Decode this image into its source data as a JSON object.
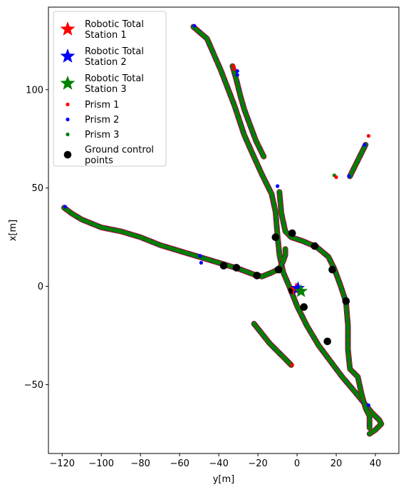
{
  "chart_data": {
    "type": "scatter",
    "title": "",
    "xlabel": "y[m]",
    "ylabel": "x[m]",
    "xlim": [
      -127,
      52
    ],
    "ylim": [
      -85,
      142
    ],
    "xticks": [
      -120,
      -100,
      -80,
      -60,
      -40,
      -20,
      0,
      20,
      40
    ],
    "yticks": [
      -50,
      0,
      50,
      100
    ],
    "xtick_labels": [
      "−120",
      "−100",
      "−80",
      "−60",
      "−40",
      "−20",
      "0",
      "20",
      "40"
    ],
    "ytick_labels": [
      "−50",
      "0",
      "50",
      "100"
    ],
    "grid": false,
    "legend_position": "top-left",
    "colors": {
      "station1": "#ff0000",
      "station2": "#0000ff",
      "station3": "#008000",
      "prism1": "#ff0000",
      "prism2": "#0000ff",
      "prism3": "#008000",
      "gcp": "#000000",
      "track_edge": "#b01030"
    },
    "stations": [
      {
        "name": "Robotic Total Station 1",
        "label_lines": [
          "Robotic Total",
          "Station 1"
        ],
        "x": -0.5,
        "y": -1.5,
        "color": "#ff0000"
      },
      {
        "name": "Robotic Total Station 2",
        "label_lines": [
          "Robotic Total",
          "Station 2"
        ],
        "x": 0.5,
        "y": -1.0,
        "color": "#0000ff"
      },
      {
        "name": "Robotic Total Station 3",
        "label_lines": [
          "Robotic Total",
          "Station 3"
        ],
        "x": 2.0,
        "y": -2.5,
        "color": "#008000"
      }
    ],
    "prism_legend": [
      {
        "name": "Prism 1",
        "color": "#ff0000"
      },
      {
        "name": "Prism 2",
        "color": "#0000ff"
      },
      {
        "name": "Prism 3",
        "color": "#008000"
      }
    ],
    "gcp_legend": {
      "name": "Ground control points",
      "label_lines": [
        "Ground control",
        "points"
      ]
    },
    "trajectories": [
      {
        "id": "main-diagonal",
        "points": [
          [
            -53,
            132
          ],
          [
            -46,
            126
          ],
          [
            -39,
            110
          ],
          [
            -32,
            92
          ],
          [
            -27,
            77
          ],
          [
            -23,
            68
          ],
          [
            -18,
            57
          ],
          [
            -13,
            47
          ],
          [
            -11,
            38
          ],
          [
            -10,
            26
          ],
          [
            -9,
            16
          ],
          [
            -7,
            7
          ],
          [
            -4,
            0
          ],
          [
            0,
            -10
          ],
          [
            5,
            -20
          ],
          [
            11,
            -30
          ],
          [
            17,
            -38
          ],
          [
            23,
            -46
          ],
          [
            29,
            -53
          ],
          [
            34,
            -59
          ],
          [
            38,
            -64
          ],
          [
            42,
            -68
          ],
          [
            43,
            -70
          ],
          [
            40,
            -73
          ],
          [
            37,
            -75
          ]
        ]
      },
      {
        "id": "left-branch",
        "points": [
          [
            -119,
            40
          ],
          [
            -115,
            37
          ],
          [
            -110,
            34
          ],
          [
            -100,
            30
          ],
          [
            -90,
            28
          ],
          [
            -80,
            25
          ],
          [
            -70,
            21
          ],
          [
            -60,
            18
          ],
          [
            -50,
            15
          ],
          [
            -40,
            12
          ],
          [
            -30,
            9
          ],
          [
            -22,
            6
          ],
          [
            -18,
            5
          ],
          [
            -13,
            7
          ],
          [
            -9,
            9
          ],
          [
            -7,
            13
          ],
          [
            -6,
            16
          ],
          [
            -6,
            19
          ]
        ]
      },
      {
        "id": "right-branch",
        "points": [
          [
            -9,
            48
          ],
          [
            -8,
            37
          ],
          [
            -6,
            28
          ],
          [
            -3,
            25
          ],
          [
            3,
            23
          ],
          [
            10,
            20
          ],
          [
            16,
            15
          ],
          [
            19,
            9
          ],
          [
            22,
            1
          ],
          [
            25,
            -8
          ],
          [
            26,
            -20
          ],
          [
            26,
            -32
          ],
          [
            27,
            -42
          ],
          [
            31,
            -46
          ],
          [
            33,
            -55
          ],
          [
            35,
            -62
          ],
          [
            37,
            -66
          ],
          [
            37,
            -72
          ]
        ]
      },
      {
        "id": "short-segment-left",
        "points": [
          [
            -22,
            -19
          ],
          [
            -18,
            -24
          ],
          [
            -14,
            -29
          ],
          [
            -10,
            -33
          ],
          [
            -6,
            -37
          ],
          [
            -3,
            -40
          ]
        ]
      },
      {
        "id": "short-segment-right",
        "points": [
          [
            27,
            56
          ],
          [
            30,
            62
          ],
          [
            33,
            68
          ],
          [
            35,
            72
          ]
        ]
      },
      {
        "id": "upper-spur",
        "points": [
          [
            -33,
            112
          ],
          [
            -31,
            105
          ],
          [
            -29,
            97
          ],
          [
            -27,
            90
          ],
          [
            -24,
            82
          ],
          [
            -21,
            74
          ],
          [
            -17,
            66
          ]
        ]
      }
    ],
    "prism_outliers": [
      {
        "prism": "Prism 1",
        "x": -32.5,
        "y": 112
      },
      {
        "prism": "Prism 1",
        "x": -32,
        "y": 110.5
      },
      {
        "prism": "Prism 2",
        "x": -30.5,
        "y": 109.5
      },
      {
        "prism": "Prism 2",
        "x": -30.5,
        "y": 107.5
      },
      {
        "prism": "Prism 1",
        "x": 36.5,
        "y": 76.5
      },
      {
        "prism": "Prism 2",
        "x": 34.5,
        "y": 72
      },
      {
        "prism": "Prism 3",
        "x": 19,
        "y": 56.5
      },
      {
        "prism": "Prism 1",
        "x": 20,
        "y": 55.5
      },
      {
        "prism": "Prism 2",
        "x": -10,
        "y": 51
      },
      {
        "prism": "Prism 2",
        "x": -49,
        "y": 12
      },
      {
        "prism": "Prism 2",
        "x": -49.5,
        "y": 15.5
      },
      {
        "prism": "Prism 2",
        "x": -118.5,
        "y": 40.5
      },
      {
        "prism": "Prism 2",
        "x": 26.5,
        "y": 56
      },
      {
        "prism": "Prism 1",
        "x": -2.5,
        "y": -40
      },
      {
        "prism": "Prism 2",
        "x": -52.5,
        "y": 132.5
      },
      {
        "prism": "Prism 2",
        "x": 36.5,
        "y": -60.5
      }
    ],
    "ground_control_points": [
      {
        "x": -37.5,
        "y": 10.5
      },
      {
        "x": -31,
        "y": 9.5
      },
      {
        "x": -20.5,
        "y": 5.5
      },
      {
        "x": -11,
        "y": 25
      },
      {
        "x": -9.5,
        "y": 8.5
      },
      {
        "x": -2.5,
        "y": -2
      },
      {
        "x": -2.5,
        "y": 27
      },
      {
        "x": 3.5,
        "y": -10.5
      },
      {
        "x": 9,
        "y": 20.5
      },
      {
        "x": 18,
        "y": 8.5
      },
      {
        "x": 25,
        "y": -7.5
      },
      {
        "x": 15.5,
        "y": -28
      }
    ]
  }
}
